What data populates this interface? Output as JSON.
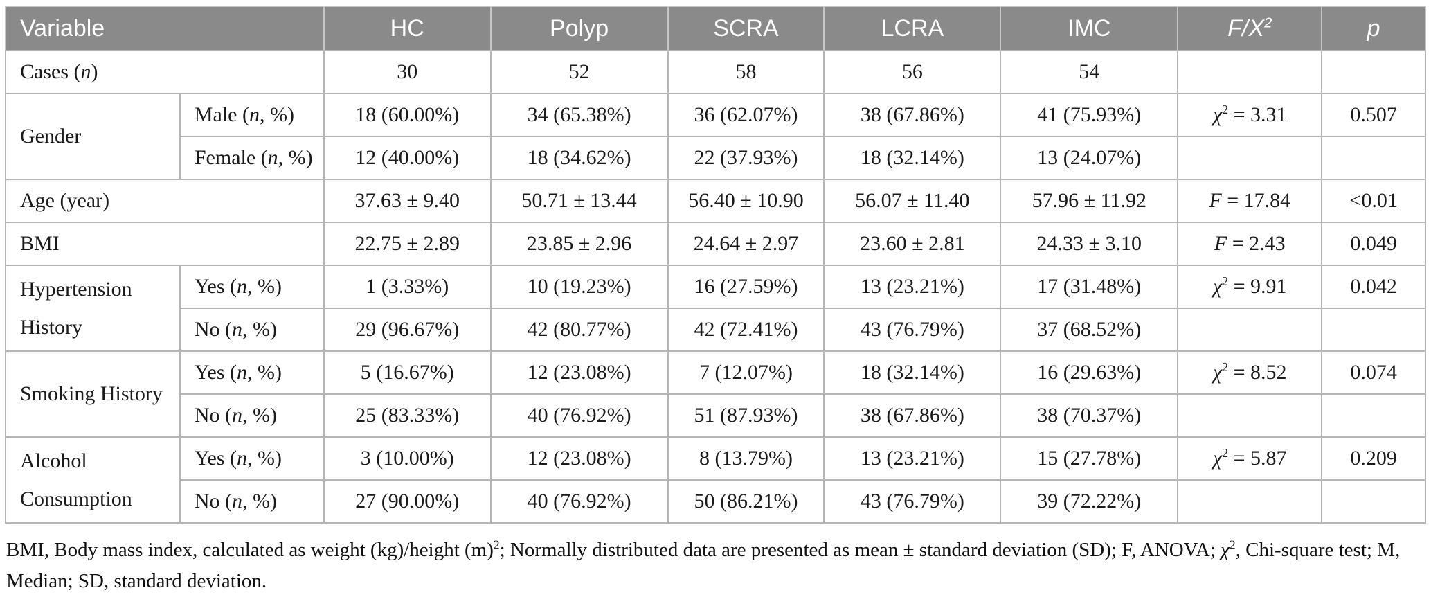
{
  "header": {
    "variable": "Variable",
    "groups": [
      "HC",
      "Polyp",
      "SCRA",
      "LCRA",
      "IMC"
    ],
    "stat": "F/X<sup>2</sup>",
    "p": "p"
  },
  "rows": {
    "cases": {
      "label": "Cases (<i>n</i>)",
      "values": [
        "30",
        "52",
        "58",
        "56",
        "54"
      ],
      "stat": "",
      "p": ""
    },
    "gender": {
      "label": "Gender",
      "male_label": "Male (<i>n</i>, %)",
      "male_values": [
        "18 (60.00%)",
        "34 (65.38%)",
        "36 (62.07%)",
        "38 (67.86%)",
        "41 (75.93%)"
      ],
      "stat": "<i>χ</i><sup>2</sup> = 3.31",
      "p": "0.507",
      "female_label": "Female (<i>n</i>, %)",
      "female_values": [
        "12 (40.00%)",
        "18 (34.62%)",
        "22 (37.93%)",
        "18 (32.14%)",
        "13 (24.07%)"
      ]
    },
    "age": {
      "label": "Age (year)",
      "values": [
        "37.63 ± 9.40",
        "50.71 ± 13.44",
        "56.40 ± 10.90",
        "56.07 ± 11.40",
        "57.96 ± 11.92"
      ],
      "stat": "<i>F</i> = 17.84",
      "p": "<0.01"
    },
    "bmi": {
      "label": "BMI",
      "values": [
        "22.75 ± 2.89",
        "23.85 ± 2.96",
        "24.64 ± 2.97",
        "23.60 ± 2.81",
        "24.33 ± 3.10"
      ],
      "stat": "<i>F</i> = 2.43",
      "p": "0.049"
    },
    "hypertension": {
      "label": "Hypertension History",
      "yes_label": "Yes (<i>n</i>, %)",
      "yes_values": [
        "1 (3.33%)",
        "10 (19.23%)",
        "16 (27.59%)",
        "13 (23.21%)",
        "17 (31.48%)"
      ],
      "stat": "<i>χ</i><sup>2</sup> = 9.91",
      "p": "0.042",
      "no_label": "No (<i>n</i>, %)",
      "no_values": [
        "29 (96.67%)",
        "42 (80.77%)",
        "42 (72.41%)",
        "43 (76.79%)",
        "37 (68.52%)"
      ]
    },
    "smoking": {
      "label": "Smoking History",
      "yes_label": "Yes (<i>n</i>, %)",
      "yes_values": [
        "5 (16.67%)",
        "12 (23.08%)",
        "7 (12.07%)",
        "18 (32.14%)",
        "16 (29.63%)"
      ],
      "stat": "<i>χ</i><sup>2</sup> = 8.52",
      "p": "0.074",
      "no_label": "No (<i>n</i>, %)",
      "no_values": [
        "25 (83.33%)",
        "40 (76.92%)",
        "51 (87.93%)",
        "38 (67.86%)",
        "38 (70.37%)"
      ]
    },
    "alcohol": {
      "label": "Alcohol Consumption",
      "yes_label": "Yes (<i>n</i>, %)",
      "yes_values": [
        "3 (10.00%)",
        "12 (23.08%)",
        "8 (13.79%)",
        "13 (23.21%)",
        "15 (27.78%)"
      ],
      "stat": "<i>χ</i><sup>2</sup> = 5.87",
      "p": "0.209",
      "no_label": "No (<i>n</i>, %)",
      "no_values": [
        "27 (90.00%)",
        "40 (76.92%)",
        "50 (86.21%)",
        "43 (76.79%)",
        "39 (72.22%)"
      ]
    }
  },
  "footnote": "BMI, Body mass index, calculated as weight (kg)/height (m)<sup>2</sup>; Normally distributed data are presented as mean ± standard deviation (SD); F, ANOVA; <i>χ</i><sup>2</sup>, Chi-square test; M, Median; SD, standard deviation.",
  "colors": {
    "header_bg": "#8a8a8a",
    "header_text": "#ffffff",
    "border": "#b5b5b5",
    "body_text": "#1a1a1a"
  }
}
